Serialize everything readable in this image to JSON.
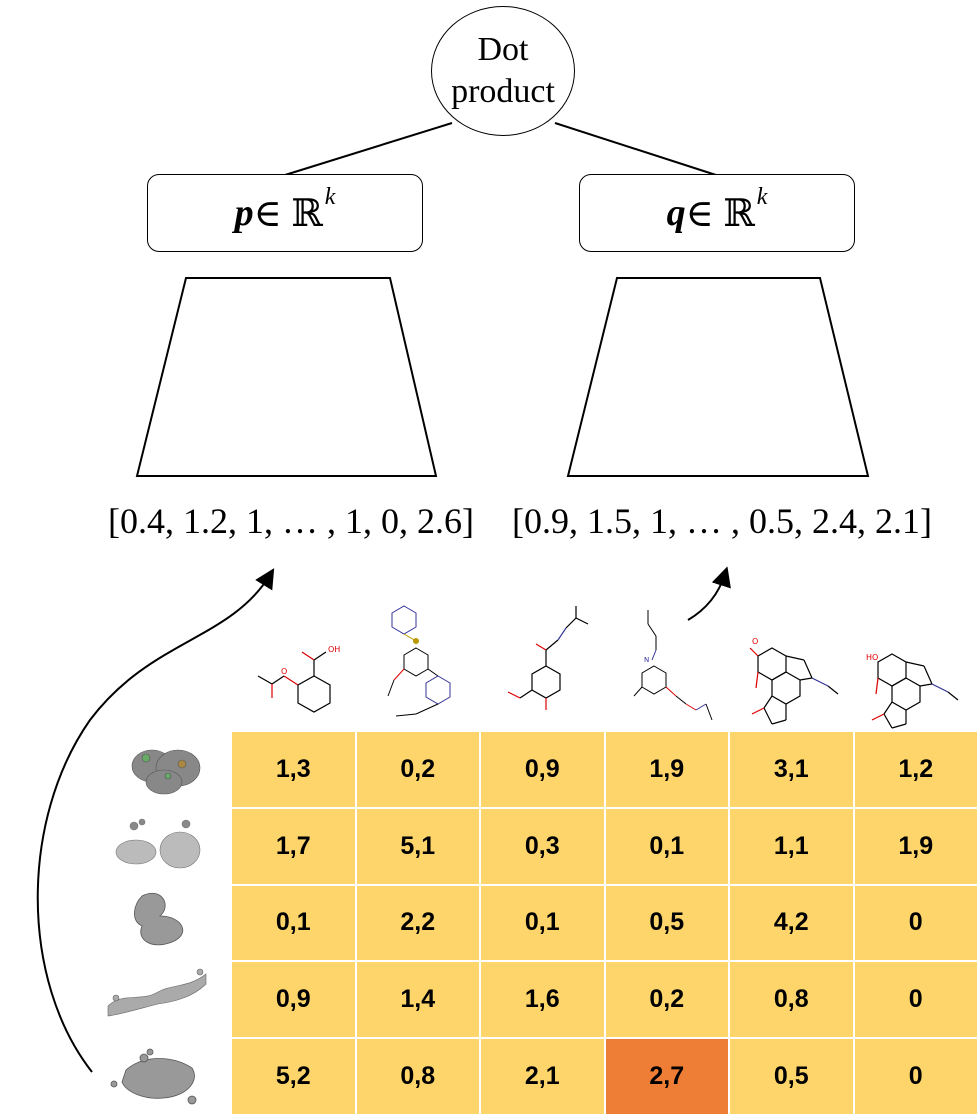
{
  "root_node": {
    "line1": "Dot",
    "line2": "product"
  },
  "left_tower": {
    "symbol": "p",
    "relation": " ∈ ℝ",
    "exponent": "k",
    "embedding": "[0.4, 1.2, 1, … , 1, 0, 2.6]"
  },
  "right_tower": {
    "symbol": "q",
    "relation": " ∈ ℝ",
    "exponent": "k",
    "embedding": "[0.9, 1.5, 1, … , 0.5, 2.4, 2.1]"
  },
  "matrix": {
    "rows": [
      [
        "1,3",
        "0,2",
        "0,9",
        "1,9",
        "3,1",
        "1,2"
      ],
      [
        "1,7",
        "5,1",
        "0,3",
        "0,1",
        "1,1",
        "1,9"
      ],
      [
        "0,1",
        "2,2",
        "0,1",
        "0,5",
        "4,2",
        "0"
      ],
      [
        "0,9",
        "1,4",
        "1,6",
        "0,2",
        "0,8",
        "0"
      ],
      [
        "5,2",
        "0,8",
        "2,1",
        "2,7",
        "0,5",
        "0"
      ]
    ],
    "highlight_row": 4,
    "highlight_col": 3,
    "cell_color": "#fdd56a",
    "highlight_color": "#ee7e35"
  },
  "molecule_labels": {
    "m1": "OH",
    "m1b": "O",
    "m4": "N",
    "m5": "O",
    "m6": "HO"
  },
  "icons": {
    "columns": [
      "aspirin-molecule-icon",
      "sulfonamide-drug-molecule-icon",
      "salbutamol-molecule-icon",
      "amide-drug-molecule-icon",
      "codeine-molecule-icon",
      "morphine-molecule-icon"
    ],
    "rows": [
      "protein-complex-icon",
      "protein-dimer-icon",
      "protein-fold-icon",
      "protein-elongated-icon",
      "protein-beta-sheet-icon"
    ]
  }
}
